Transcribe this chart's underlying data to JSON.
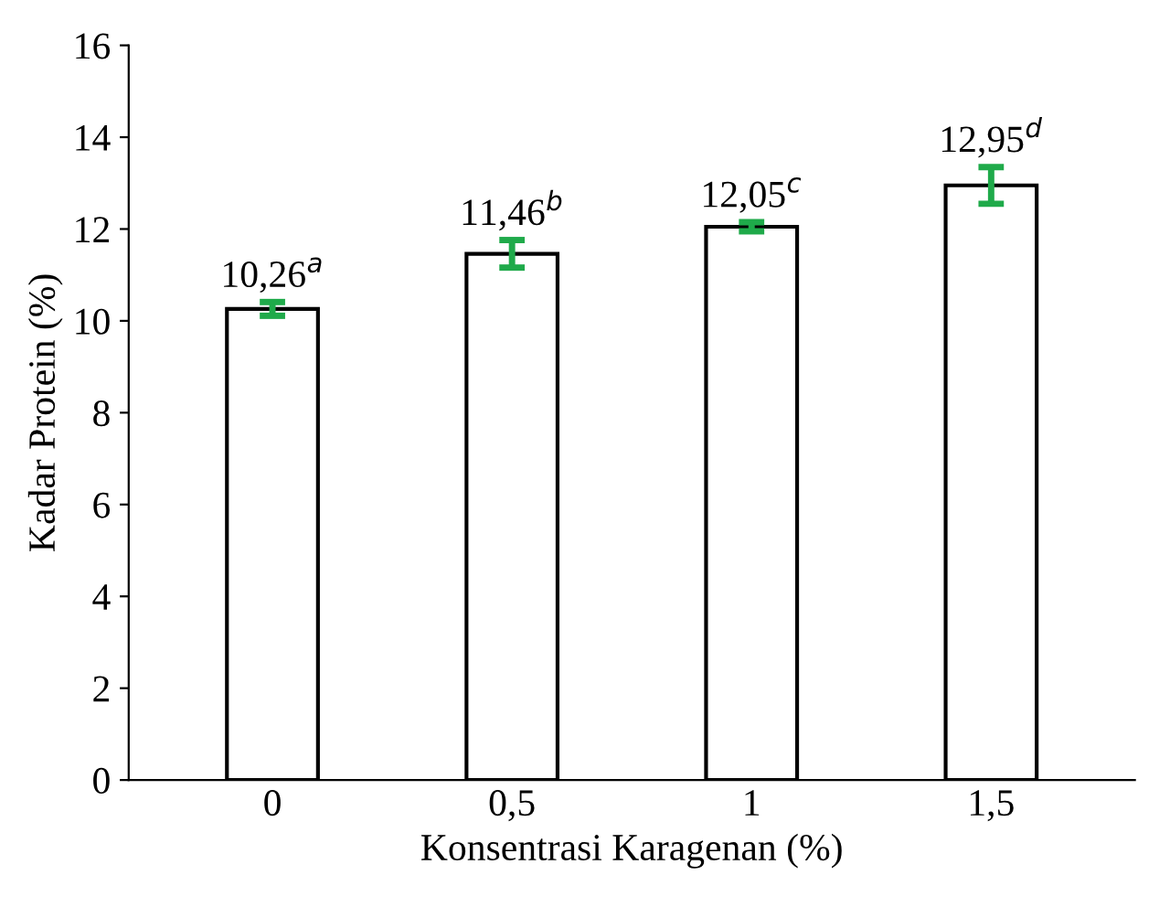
{
  "chart_data": {
    "type": "bar",
    "xlabel": "Konsentrasi Karagenan (%)",
    "ylabel": "Kadar Protein (%)",
    "categories": [
      "0",
      "0,5",
      "1",
      "1,5"
    ],
    "values": [
      10.26,
      11.46,
      12.05,
      12.95
    ],
    "errors": [
      0.15,
      0.3,
      0.1,
      0.4
    ],
    "value_labels": [
      "10,26$^{a}$",
      "11,46$^{b}$",
      "12,05$^{c}$",
      "12,95$^{d}$"
    ],
    "color": "#ffffff",
    "ylim": [
      0,
      16
    ],
    "yticks": [
      0,
      2,
      4,
      6,
      8,
      10,
      12,
      14,
      16
    ],
    "grid": false
  }
}
